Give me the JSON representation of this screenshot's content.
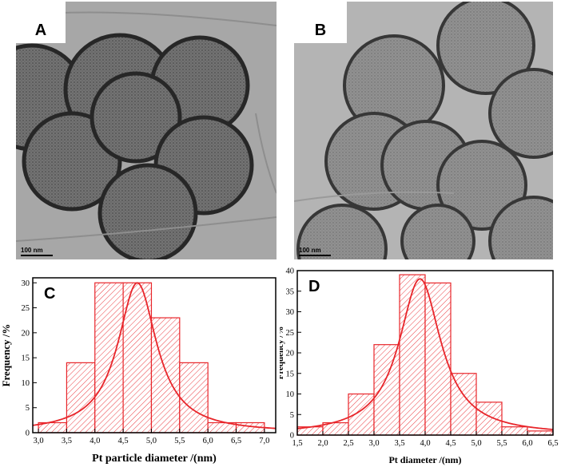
{
  "panels": {
    "A": {
      "label": "A",
      "scale": "100 nm"
    },
    "B": {
      "label": "B",
      "scale": "100 nm"
    }
  },
  "colors": {
    "histogram": "#e8252a",
    "axis": "#000000"
  },
  "chart_data": [
    {
      "type": "bar",
      "panel_label": "C",
      "xlabel": "Pt particle diameter /(nm)",
      "ylabel": "Frequency /%",
      "xlim": [
        2.9,
        7.2
      ],
      "ylim": [
        0,
        31
      ],
      "xticks": [
        3.0,
        3.5,
        4.0,
        4.5,
        5.0,
        5.5,
        6.0,
        6.5,
        7.0
      ],
      "xtick_labels": [
        "3,0",
        "3,5",
        "4,0",
        "4,5",
        "5,0",
        "5,5",
        "6,0",
        "6,5",
        "7,0"
      ],
      "yticks": [
        0,
        5,
        10,
        15,
        20,
        25,
        30
      ],
      "ytick_labels": [
        "0",
        "5",
        "10",
        "15",
        "20",
        "25",
        "30"
      ],
      "bins": [
        [
          3.0,
          3.5
        ],
        [
          3.5,
          4.0
        ],
        [
          4.0,
          4.5
        ],
        [
          4.5,
          5.0
        ],
        [
          5.0,
          5.5
        ],
        [
          5.5,
          6.0
        ],
        [
          6.0,
          6.5
        ],
        [
          6.5,
          7.0
        ]
      ],
      "values": [
        2,
        14,
        30,
        30,
        23,
        14,
        2,
        2
      ],
      "fit": {
        "type": "lorentzian",
        "center": 4.75,
        "width": 0.42,
        "amplitude": 30,
        "baseline": 0
      }
    },
    {
      "type": "bar",
      "panel_label": "D",
      "xlabel": "Pt diameter /(nm)",
      "ylabel": "Frequency /%",
      "xlim": [
        1.5,
        6.5
      ],
      "ylim": [
        0,
        40
      ],
      "xticks": [
        1.5,
        2.0,
        2.5,
        3.0,
        3.5,
        4.0,
        4.5,
        5.0,
        5.5,
        6.0,
        6.5
      ],
      "xtick_labels": [
        "1,5",
        "2,0",
        "2,5",
        "3,0",
        "3,5",
        "4,0",
        "4,5",
        "5,0",
        "5,5",
        "6,0",
        "6,5"
      ],
      "yticks": [
        0,
        5,
        10,
        15,
        20,
        25,
        30,
        35,
        40
      ],
      "ytick_labels": [
        "0",
        "5",
        "10",
        "15",
        "20",
        "25",
        "30",
        "35",
        "40"
      ],
      "bins": [
        [
          1.5,
          2.0
        ],
        [
          2.0,
          2.5
        ],
        [
          2.5,
          3.0
        ],
        [
          3.0,
          3.5
        ],
        [
          3.5,
          4.0
        ],
        [
          4.0,
          4.5
        ],
        [
          4.5,
          5.0
        ],
        [
          5.0,
          5.5
        ],
        [
          5.5,
          6.0
        ],
        [
          6.0,
          6.5
        ]
      ],
      "values": [
        2,
        3,
        10,
        22,
        39,
        37,
        15,
        8,
        2,
        1
      ],
      "fit": {
        "type": "lorentzian",
        "center": 3.9,
        "width": 0.5,
        "amplitude": 38,
        "baseline": 0
      }
    }
  ]
}
